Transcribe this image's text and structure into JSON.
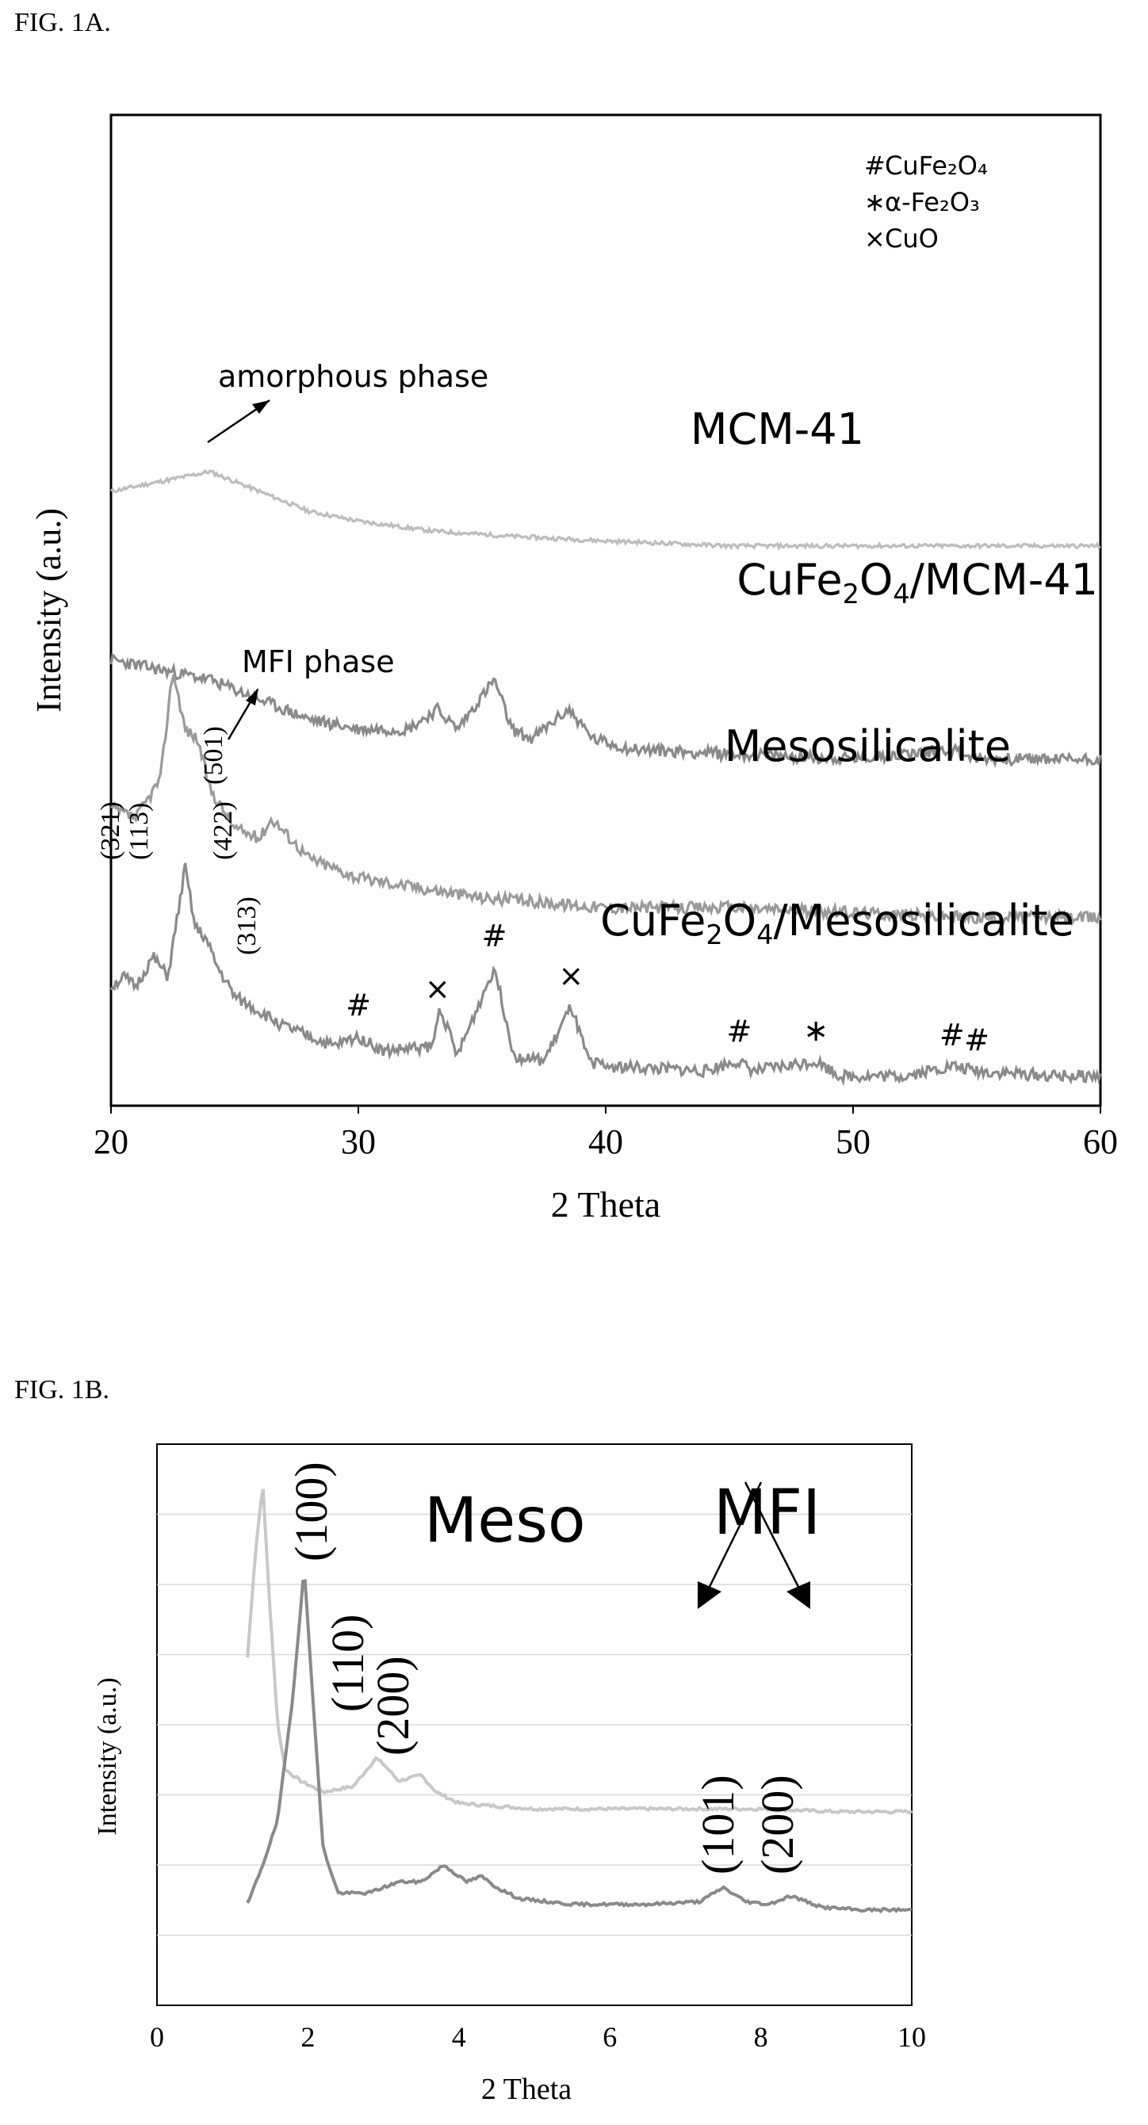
{
  "figures": [
    {
      "label": "FIG. 1A."
    },
    {
      "label": "FIG. 1B."
    }
  ],
  "chart_data": [
    {
      "type": "line",
      "xlabel": "2 Theta",
      "ylabel": "Intensity (a.u.)",
      "xlim": [
        20,
        60
      ],
      "xticks": [
        "20",
        "30",
        "40",
        "50",
        "60"
      ],
      "legend_position": "top-right",
      "legend": [
        {
          "symbol": "#",
          "name": "CuFe₂O₄"
        },
        {
          "symbol": "∗",
          "name": "α-Fe₂O₃"
        },
        {
          "symbol": "×",
          "name": "CuO"
        }
      ],
      "series": [
        {
          "name": "MCM-41",
          "label": "MCM-41",
          "color": "#bdbdbd",
          "x": [
            20,
            22,
            24,
            26,
            28,
            30,
            33,
            36,
            40,
            45,
            50,
            55,
            60
          ],
          "y": [
            0.62,
            0.63,
            0.64,
            0.62,
            0.6,
            0.59,
            0.58,
            0.575,
            0.57,
            0.565,
            0.565,
            0.565,
            0.565
          ]
        },
        {
          "name": "CuFe2O4/MCM-41",
          "label_parts": [
            "CuFe",
            "2",
            "O",
            "4",
            "/MCM-41"
          ],
          "color": "#8a8a8a",
          "x": [
            20,
            22,
            24,
            26,
            28,
            30,
            32,
            33.2,
            34,
            35.5,
            36.2,
            37,
            38.5,
            39.5,
            41,
            45,
            50,
            54,
            55,
            60
          ],
          "y": [
            0.45,
            0.44,
            0.43,
            0.41,
            0.39,
            0.38,
            0.38,
            0.4,
            0.38,
            0.43,
            0.38,
            0.37,
            0.4,
            0.37,
            0.36,
            0.355,
            0.35,
            0.36,
            0.35,
            0.35
          ]
        },
        {
          "name": "Mesosilicalite",
          "label": "Mesosilicalite",
          "color": "#9a9a9a",
          "x": [
            20,
            21,
            22,
            22.5,
            23,
            23.5,
            24,
            25,
            26,
            26.5,
            28,
            30,
            35,
            40,
            45,
            50,
            55,
            60
          ],
          "y": [
            0.3,
            0.29,
            0.33,
            0.44,
            0.38,
            0.37,
            0.32,
            0.28,
            0.27,
            0.29,
            0.25,
            0.23,
            0.21,
            0.2,
            0.2,
            0.195,
            0.19,
            0.19
          ]
        },
        {
          "name": "CuFe2O4/Mesosilicalite",
          "label_parts": [
            "CuFe",
            "2",
            "O",
            "4",
            "/Mesosilicalite"
          ],
          "color": "#8a8a8a",
          "x": [
            20,
            20.5,
            21,
            21.7,
            22.3,
            23,
            23.4,
            23.8,
            24.3,
            25,
            27,
            29,
            30,
            31,
            33,
            33.3,
            34,
            35.5,
            36.3,
            37.5,
            38.6,
            39.3,
            40,
            44,
            45.3,
            46,
            48.5,
            49.5,
            52,
            54,
            55,
            58,
            60
          ],
          "y": [
            0.12,
            0.13,
            0.12,
            0.15,
            0.13,
            0.24,
            0.18,
            0.17,
            0.14,
            0.11,
            0.08,
            0.06,
            0.07,
            0.055,
            0.06,
            0.1,
            0.05,
            0.14,
            0.05,
            0.045,
            0.1,
            0.045,
            0.04,
            0.035,
            0.045,
            0.035,
            0.045,
            0.03,
            0.03,
            0.04,
            0.035,
            0.03,
            0.03
          ]
        }
      ],
      "annotations": [
        {
          "text": "amorphous phase",
          "points_to": "MCM-41"
        },
        {
          "text": "MFI phase",
          "points_to": "Mesosilicalite"
        },
        {
          "miller": [
            "(321)",
            "(113)",
            "(501)",
            "(422)",
            "(313)"
          ]
        },
        {
          "peak_markers": [
            {
              "x": 30,
              "symbol": "#"
            },
            {
              "x": 33.2,
              "symbol": "×"
            },
            {
              "x": 35.5,
              "symbol": "#"
            },
            {
              "x": 38.6,
              "symbol": "×"
            },
            {
              "x": 45.4,
              "symbol": "#"
            },
            {
              "x": 48.5,
              "symbol": "∗"
            },
            {
              "x": 54,
              "symbol": "#"
            },
            {
              "x": 55,
              "symbol": "#"
            }
          ]
        }
      ]
    },
    {
      "type": "line",
      "xlabel": "2 Theta",
      "ylabel": "Intensity (a.u.)",
      "xlim": [
        0,
        10
      ],
      "xticks": [
        "0",
        "2",
        "4",
        "6",
        "8",
        "10"
      ],
      "grid": true,
      "labels": {
        "meso": "Meso",
        "mfi": "MFI"
      },
      "miller": [
        "(100)",
        "(110)",
        "(200)",
        "(101)",
        "(200)"
      ],
      "series": [
        {
          "color": "#c8c8c8",
          "x": [
            1.2,
            1.3,
            1.4,
            1.5,
            1.6,
            1.7,
            1.9,
            2.2,
            2.6,
            2.9,
            3.0,
            3.2,
            3.5,
            3.7,
            4.0,
            5,
            6,
            7,
            8,
            9,
            10
          ],
          "y": [
            0.62,
            0.8,
            0.93,
            0.7,
            0.5,
            0.42,
            0.4,
            0.38,
            0.39,
            0.44,
            0.43,
            0.4,
            0.41,
            0.38,
            0.36,
            0.35,
            0.35,
            0.35,
            0.35,
            0.345,
            0.345
          ]
        },
        {
          "color": "#8a8a8a",
          "x": [
            1.2,
            1.4,
            1.6,
            1.8,
            1.95,
            2.1,
            2.2,
            2.4,
            2.8,
            3.2,
            3.5,
            3.8,
            4.1,
            4.3,
            4.5,
            4.8,
            5.5,
            6.5,
            7.2,
            7.5,
            7.8,
            8.1,
            8.4,
            8.8,
            9.3,
            10
          ],
          "y": [
            0.18,
            0.25,
            0.33,
            0.55,
            0.78,
            0.48,
            0.28,
            0.2,
            0.2,
            0.22,
            0.22,
            0.25,
            0.22,
            0.23,
            0.21,
            0.19,
            0.18,
            0.18,
            0.185,
            0.21,
            0.185,
            0.18,
            0.195,
            0.175,
            0.17,
            0.17
          ]
        }
      ]
    }
  ]
}
